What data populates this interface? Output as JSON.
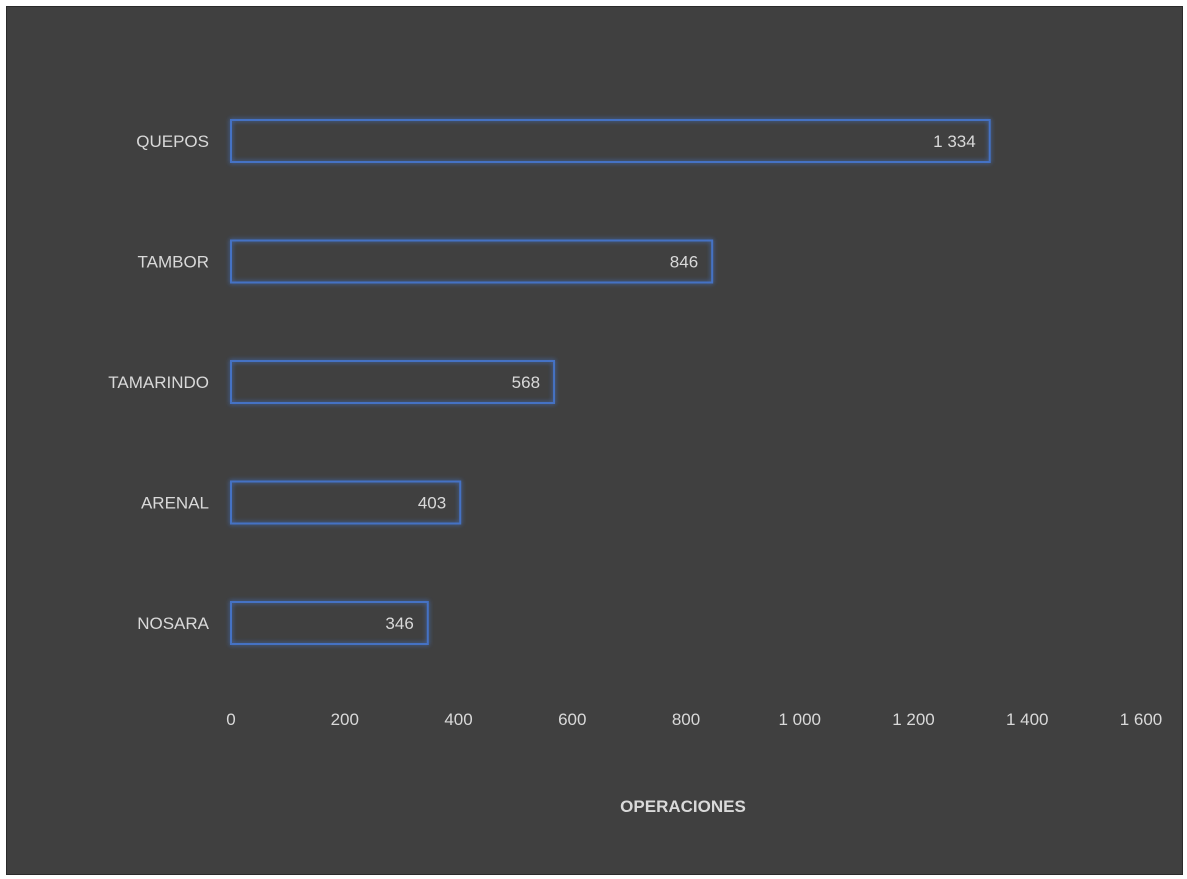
{
  "chart_data": {
    "type": "bar",
    "orientation": "horizontal",
    "categories": [
      "QUEPOS",
      "TAMBOR",
      "TAMARINDO",
      "ARENAL",
      "NOSARA"
    ],
    "values": [
      1334,
      846,
      568,
      403,
      346
    ],
    "value_labels": [
      "1 334",
      "846",
      "568",
      "403",
      "346"
    ],
    "xlabel": "OPERACIONES",
    "ylabel": "",
    "xlim": [
      0,
      1600
    ],
    "xticks": [
      0,
      200,
      400,
      600,
      800,
      1000,
      1200,
      1400,
      1600
    ],
    "xtick_labels": [
      "0",
      "200",
      "400",
      "600",
      "800",
      "1 000",
      "1 200",
      "1 400",
      "1 600"
    ],
    "grid": false,
    "legend": "none",
    "colors": {
      "background": "#404040",
      "bar_outline": "#4472c4",
      "text": "#d9d9d9"
    }
  }
}
